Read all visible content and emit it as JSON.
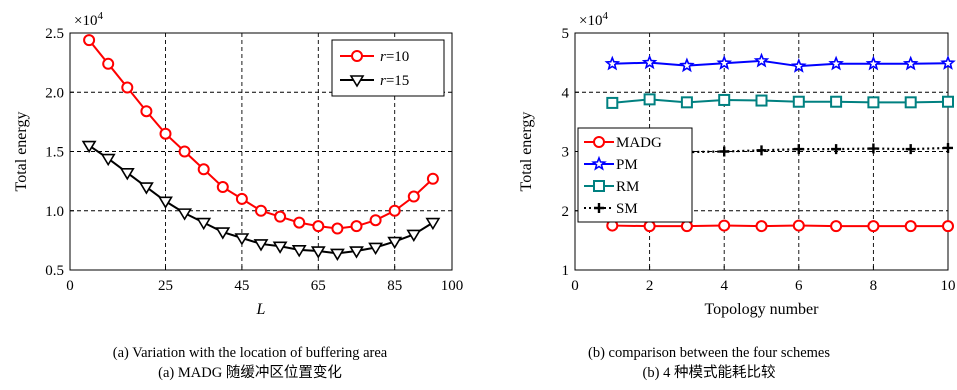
{
  "captions": {
    "left_en": "(a) Variation with the location of buffering area",
    "left_cn": "(a) MADG 随缓冲区位置变化",
    "right_en": "(b) comparison between the four schemes",
    "right_cn": "(b) 4 种模式能耗比较"
  },
  "chart_data": [
    {
      "type": "line",
      "multiplier": "×10",
      "multiplier_exp": "4",
      "xlabel": "L",
      "ylabel": "Total energy",
      "xlim": [
        0,
        100
      ],
      "ylim": [
        0.5,
        2.5
      ],
      "xticks": [
        0,
        25,
        45,
        65,
        85,
        100
      ],
      "yticks": [
        0.5,
        1.0,
        1.5,
        2.0,
        2.5
      ],
      "ytick_labels": [
        "0.5",
        "1.0",
        "1.5",
        "2.0",
        "2.5"
      ],
      "grid": true,
      "legend_position": "top-right",
      "x": [
        5,
        10,
        15,
        20,
        25,
        30,
        35,
        40,
        45,
        50,
        55,
        60,
        65,
        70,
        75,
        80,
        85,
        90,
        95
      ],
      "series": [
        {
          "name": "r=10",
          "legend_italic": "r",
          "legend_rest": "=10",
          "color": "#ff0000",
          "marker": "circle",
          "line": "solid",
          "values": [
            2.44,
            2.24,
            2.04,
            1.84,
            1.65,
            1.5,
            1.35,
            1.2,
            1.1,
            1.0,
            0.95,
            0.9,
            0.87,
            0.85,
            0.87,
            0.92,
            1.0,
            1.12,
            1.27
          ]
        },
        {
          "name": "r=15",
          "legend_italic": "r",
          "legend_rest": "=15",
          "color": "#000000",
          "marker": "triangle-down",
          "line": "solid",
          "values": [
            1.55,
            1.44,
            1.32,
            1.2,
            1.08,
            0.98,
            0.9,
            0.82,
            0.77,
            0.72,
            0.7,
            0.67,
            0.66,
            0.64,
            0.66,
            0.69,
            0.74,
            0.8,
            0.9
          ]
        }
      ]
    },
    {
      "type": "line",
      "multiplier": "×10",
      "multiplier_exp": "4",
      "xlabel": "Topology number",
      "ylabel": "Total energy",
      "xlim": [
        0,
        10
      ],
      "ylim": [
        1,
        5
      ],
      "xticks": [
        0,
        2,
        4,
        6,
        8,
        10
      ],
      "yticks": [
        1,
        2,
        3,
        4,
        5
      ],
      "grid": true,
      "legend_position": "middle-left",
      "x": [
        1,
        2,
        3,
        4,
        5,
        6,
        7,
        8,
        9,
        10
      ],
      "series": [
        {
          "name": "MADG",
          "color": "#ff0000",
          "marker": "circle",
          "line": "solid",
          "values": [
            1.75,
            1.74,
            1.74,
            1.75,
            1.74,
            1.75,
            1.74,
            1.74,
            1.74,
            1.74
          ]
        },
        {
          "name": "PM",
          "color": "#0000ff",
          "marker": "star",
          "line": "solid",
          "values": [
            4.48,
            4.5,
            4.45,
            4.49,
            4.53,
            4.44,
            4.48,
            4.48,
            4.48,
            4.49
          ]
        },
        {
          "name": "RM",
          "color": "#008080",
          "marker": "square",
          "line": "solid",
          "values": [
            3.82,
            3.88,
            3.83,
            3.87,
            3.86,
            3.84,
            3.84,
            3.83,
            3.83,
            3.84
          ]
        },
        {
          "name": "SM",
          "color": "#000000",
          "marker": "plus",
          "line": "dotted",
          "values": [
            2.98,
            2.99,
            2.99,
            3.0,
            3.02,
            3.04,
            3.04,
            3.05,
            3.04,
            3.06
          ]
        }
      ]
    }
  ]
}
